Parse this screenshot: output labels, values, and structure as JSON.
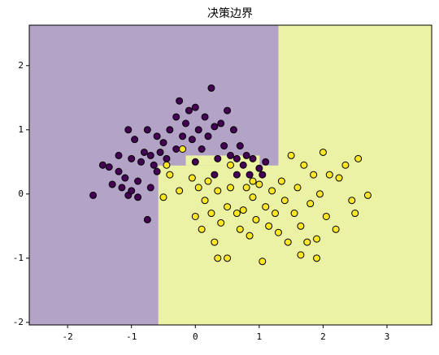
{
  "chart_data": {
    "type": "scatter",
    "title": "决策边界",
    "xlim": [
      -2.6,
      3.7
    ],
    "ylim": [
      -2.04,
      2.63
    ],
    "xticks": [
      -2,
      -1,
      0,
      1,
      2,
      3
    ],
    "yticks": [
      -2,
      -1,
      0,
      1,
      2
    ],
    "regions": [
      {
        "xlim": [
          -2.6,
          -0.58
        ],
        "ylim": [
          -2.04,
          2.63
        ],
        "color": "#b3a3c7"
      },
      {
        "xlim": [
          -0.58,
          1.3
        ],
        "ylim": [
          -2.04,
          0.45
        ],
        "color": "#ecf2a3"
      },
      {
        "xlim": [
          -0.58,
          1.3
        ],
        "ylim": [
          0.45,
          2.63
        ],
        "color": "#b3a3c7"
      },
      {
        "xlim": [
          -0.15,
          1.0
        ],
        "ylim": [
          0.45,
          0.6
        ],
        "color": "#ecf2a3"
      },
      {
        "xlim": [
          1.3,
          3.7
        ],
        "ylim": [
          -2.04,
          2.63
        ],
        "color": "#ecf2a3"
      }
    ],
    "series": [
      {
        "color": "#440154",
        "x": [
          -1.6,
          -1.45,
          -1.35,
          -1.3,
          -1.2,
          -1.15,
          -1.1,
          -1.05,
          -1.0,
          -1.0,
          -0.95,
          -0.9,
          -0.85,
          -0.8,
          -0.75,
          -0.7,
          -0.7,
          -0.65,
          -0.6,
          -0.55,
          -0.5,
          -0.45,
          -0.4,
          -0.3,
          -0.3,
          -0.25,
          -0.2,
          -0.15,
          -0.1,
          -0.05,
          0.0,
          0.05,
          0.1,
          0.15,
          0.2,
          0.25,
          0.3,
          0.35,
          0.4,
          0.45,
          0.5,
          0.6,
          0.65,
          0.7,
          0.75,
          0.8,
          0.85,
          0.9,
          1.0,
          1.05,
          1.1,
          -0.75,
          -1.2,
          -1.05,
          0.55,
          -0.6,
          0.0,
          0.3,
          -0.9,
          0.65
        ],
        "values": [
          -0.02,
          0.45,
          0.42,
          0.15,
          0.35,
          0.1,
          0.25,
          -0.02,
          0.05,
          0.55,
          0.85,
          0.2,
          0.5,
          0.65,
          1.0,
          0.6,
          0.1,
          0.45,
          0.9,
          0.65,
          0.8,
          0.55,
          1.0,
          1.2,
          0.7,
          1.45,
          0.9,
          1.1,
          1.3,
          0.85,
          1.35,
          1.0,
          0.7,
          1.2,
          0.9,
          1.65,
          1.05,
          0.55,
          1.1,
          0.75,
          1.3,
          1.0,
          0.55,
          0.75,
          0.45,
          0.6,
          0.3,
          0.55,
          0.4,
          0.3,
          0.5,
          -0.4,
          0.6,
          1.0,
          0.6,
          0.35,
          0.5,
          0.3,
          -0.05,
          0.3
        ]
      },
      {
        "color": "#fde725",
        "x": [
          -0.5,
          -0.45,
          -0.4,
          -0.25,
          -0.2,
          -0.05,
          0.0,
          0.05,
          0.1,
          0.15,
          0.2,
          0.25,
          0.3,
          0.35,
          0.4,
          0.5,
          0.5,
          0.55,
          0.65,
          0.7,
          0.75,
          0.8,
          0.85,
          0.9,
          0.95,
          1.0,
          1.05,
          1.1,
          1.15,
          1.2,
          1.25,
          1.3,
          1.35,
          1.4,
          1.45,
          1.5,
          1.55,
          1.6,
          1.65,
          1.7,
          1.75,
          1.8,
          1.85,
          1.9,
          1.95,
          2.0,
          2.05,
          2.1,
          2.2,
          2.25,
          2.35,
          2.45,
          2.5,
          2.55,
          2.7,
          1.9,
          0.55,
          0.9,
          0.35,
          1.65
        ],
        "values": [
          -0.05,
          0.45,
          0.3,
          0.05,
          0.7,
          0.25,
          -0.35,
          0.1,
          -0.55,
          -0.1,
          0.2,
          -0.3,
          -0.75,
          0.05,
          -0.45,
          -0.2,
          -1.0,
          0.1,
          -0.3,
          -0.55,
          -0.25,
          0.1,
          -0.65,
          -0.05,
          -0.4,
          0.15,
          -1.05,
          -0.2,
          -0.5,
          0.05,
          -0.3,
          -0.6,
          0.2,
          -0.1,
          -0.75,
          0.6,
          -0.3,
          0.1,
          -0.5,
          0.45,
          -0.75,
          -0.15,
          0.3,
          -1.0,
          0.0,
          0.65,
          -0.35,
          0.3,
          -0.55,
          0.25,
          0.45,
          -0.1,
          -0.3,
          0.55,
          -0.02,
          -0.7,
          0.45,
          0.2,
          -1.0,
          -0.95
        ]
      }
    ]
  }
}
